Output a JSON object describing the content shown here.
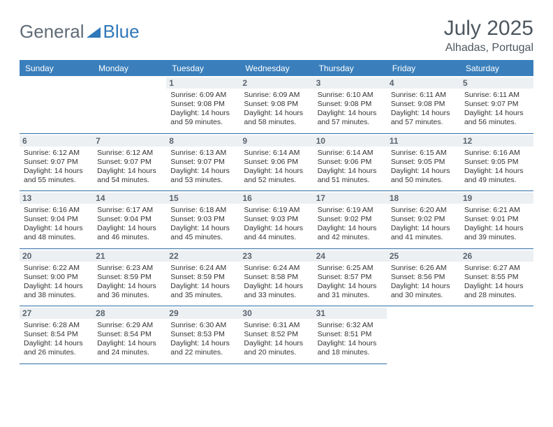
{
  "brand": {
    "part1": "General",
    "part2": "Blue"
  },
  "title": "July 2025",
  "location": "Alhadas, Portugal",
  "headerBg": "#3a7fbc",
  "dayHeaders": [
    "Sunday",
    "Monday",
    "Tuesday",
    "Wednesday",
    "Thursday",
    "Friday",
    "Saturday"
  ],
  "weeks": [
    [
      null,
      null,
      {
        "d": "1",
        "sr": "Sunrise: 6:09 AM",
        "ss": "Sunset: 9:08 PM",
        "dl1": "Daylight: 14 hours",
        "dl2": "and 59 minutes."
      },
      {
        "d": "2",
        "sr": "Sunrise: 6:09 AM",
        "ss": "Sunset: 9:08 PM",
        "dl1": "Daylight: 14 hours",
        "dl2": "and 58 minutes."
      },
      {
        "d": "3",
        "sr": "Sunrise: 6:10 AM",
        "ss": "Sunset: 9:08 PM",
        "dl1": "Daylight: 14 hours",
        "dl2": "and 57 minutes."
      },
      {
        "d": "4",
        "sr": "Sunrise: 6:11 AM",
        "ss": "Sunset: 9:08 PM",
        "dl1": "Daylight: 14 hours",
        "dl2": "and 57 minutes."
      },
      {
        "d": "5",
        "sr": "Sunrise: 6:11 AM",
        "ss": "Sunset: 9:07 PM",
        "dl1": "Daylight: 14 hours",
        "dl2": "and 56 minutes."
      }
    ],
    [
      {
        "d": "6",
        "sr": "Sunrise: 6:12 AM",
        "ss": "Sunset: 9:07 PM",
        "dl1": "Daylight: 14 hours",
        "dl2": "and 55 minutes."
      },
      {
        "d": "7",
        "sr": "Sunrise: 6:12 AM",
        "ss": "Sunset: 9:07 PM",
        "dl1": "Daylight: 14 hours",
        "dl2": "and 54 minutes."
      },
      {
        "d": "8",
        "sr": "Sunrise: 6:13 AM",
        "ss": "Sunset: 9:07 PM",
        "dl1": "Daylight: 14 hours",
        "dl2": "and 53 minutes."
      },
      {
        "d": "9",
        "sr": "Sunrise: 6:14 AM",
        "ss": "Sunset: 9:06 PM",
        "dl1": "Daylight: 14 hours",
        "dl2": "and 52 minutes."
      },
      {
        "d": "10",
        "sr": "Sunrise: 6:14 AM",
        "ss": "Sunset: 9:06 PM",
        "dl1": "Daylight: 14 hours",
        "dl2": "and 51 minutes."
      },
      {
        "d": "11",
        "sr": "Sunrise: 6:15 AM",
        "ss": "Sunset: 9:05 PM",
        "dl1": "Daylight: 14 hours",
        "dl2": "and 50 minutes."
      },
      {
        "d": "12",
        "sr": "Sunrise: 6:16 AM",
        "ss": "Sunset: 9:05 PM",
        "dl1": "Daylight: 14 hours",
        "dl2": "and 49 minutes."
      }
    ],
    [
      {
        "d": "13",
        "sr": "Sunrise: 6:16 AM",
        "ss": "Sunset: 9:04 PM",
        "dl1": "Daylight: 14 hours",
        "dl2": "and 48 minutes."
      },
      {
        "d": "14",
        "sr": "Sunrise: 6:17 AM",
        "ss": "Sunset: 9:04 PM",
        "dl1": "Daylight: 14 hours",
        "dl2": "and 46 minutes."
      },
      {
        "d": "15",
        "sr": "Sunrise: 6:18 AM",
        "ss": "Sunset: 9:03 PM",
        "dl1": "Daylight: 14 hours",
        "dl2": "and 45 minutes."
      },
      {
        "d": "16",
        "sr": "Sunrise: 6:19 AM",
        "ss": "Sunset: 9:03 PM",
        "dl1": "Daylight: 14 hours",
        "dl2": "and 44 minutes."
      },
      {
        "d": "17",
        "sr": "Sunrise: 6:19 AM",
        "ss": "Sunset: 9:02 PM",
        "dl1": "Daylight: 14 hours",
        "dl2": "and 42 minutes."
      },
      {
        "d": "18",
        "sr": "Sunrise: 6:20 AM",
        "ss": "Sunset: 9:02 PM",
        "dl1": "Daylight: 14 hours",
        "dl2": "and 41 minutes."
      },
      {
        "d": "19",
        "sr": "Sunrise: 6:21 AM",
        "ss": "Sunset: 9:01 PM",
        "dl1": "Daylight: 14 hours",
        "dl2": "and 39 minutes."
      }
    ],
    [
      {
        "d": "20",
        "sr": "Sunrise: 6:22 AM",
        "ss": "Sunset: 9:00 PM",
        "dl1": "Daylight: 14 hours",
        "dl2": "and 38 minutes."
      },
      {
        "d": "21",
        "sr": "Sunrise: 6:23 AM",
        "ss": "Sunset: 8:59 PM",
        "dl1": "Daylight: 14 hours",
        "dl2": "and 36 minutes."
      },
      {
        "d": "22",
        "sr": "Sunrise: 6:24 AM",
        "ss": "Sunset: 8:59 PM",
        "dl1": "Daylight: 14 hours",
        "dl2": "and 35 minutes."
      },
      {
        "d": "23",
        "sr": "Sunrise: 6:24 AM",
        "ss": "Sunset: 8:58 PM",
        "dl1": "Daylight: 14 hours",
        "dl2": "and 33 minutes."
      },
      {
        "d": "24",
        "sr": "Sunrise: 6:25 AM",
        "ss": "Sunset: 8:57 PM",
        "dl1": "Daylight: 14 hours",
        "dl2": "and 31 minutes."
      },
      {
        "d": "25",
        "sr": "Sunrise: 6:26 AM",
        "ss": "Sunset: 8:56 PM",
        "dl1": "Daylight: 14 hours",
        "dl2": "and 30 minutes."
      },
      {
        "d": "26",
        "sr": "Sunrise: 6:27 AM",
        "ss": "Sunset: 8:55 PM",
        "dl1": "Daylight: 14 hours",
        "dl2": "and 28 minutes."
      }
    ],
    [
      {
        "d": "27",
        "sr": "Sunrise: 6:28 AM",
        "ss": "Sunset: 8:54 PM",
        "dl1": "Daylight: 14 hours",
        "dl2": "and 26 minutes."
      },
      {
        "d": "28",
        "sr": "Sunrise: 6:29 AM",
        "ss": "Sunset: 8:54 PM",
        "dl1": "Daylight: 14 hours",
        "dl2": "and 24 minutes."
      },
      {
        "d": "29",
        "sr": "Sunrise: 6:30 AM",
        "ss": "Sunset: 8:53 PM",
        "dl1": "Daylight: 14 hours",
        "dl2": "and 22 minutes."
      },
      {
        "d": "30",
        "sr": "Sunrise: 6:31 AM",
        "ss": "Sunset: 8:52 PM",
        "dl1": "Daylight: 14 hours",
        "dl2": "and 20 minutes."
      },
      {
        "d": "31",
        "sr": "Sunrise: 6:32 AM",
        "ss": "Sunset: 8:51 PM",
        "dl1": "Daylight: 14 hours",
        "dl2": "and 18 minutes."
      },
      null,
      null
    ]
  ]
}
